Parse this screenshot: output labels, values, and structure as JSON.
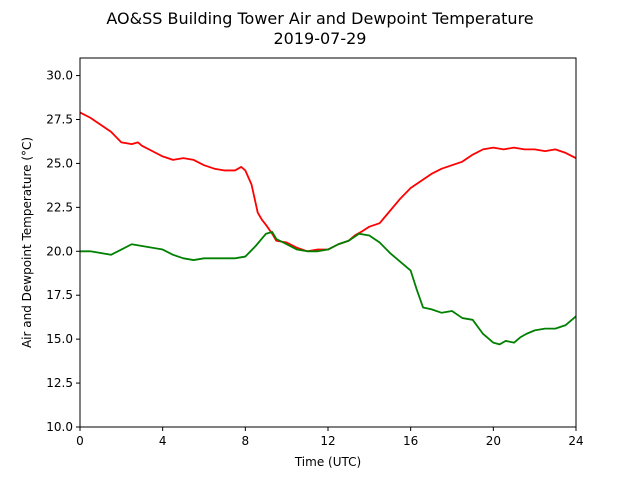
{
  "chart_data": {
    "type": "line",
    "title": "AO&SS Building Tower Air and Dewpoint Temperature",
    "subtitle": "2019-07-29",
    "xlabel": "Time (UTC)",
    "ylabel": "Air and Dewpoint Temperature (°C)",
    "xlim": [
      0,
      24
    ],
    "ylim": [
      10.0,
      31.0
    ],
    "xticks": [
      0,
      4,
      8,
      12,
      16,
      20,
      24
    ],
    "xtick_labels": [
      "0",
      "4",
      "8",
      "12",
      "16",
      "20",
      "24"
    ],
    "yticks": [
      10.0,
      12.5,
      15.0,
      17.5,
      20.0,
      22.5,
      25.0,
      27.5,
      30.0
    ],
    "ytick_labels": [
      "10.0",
      "12.5",
      "15.0",
      "17.5",
      "20.0",
      "22.5",
      "25.0",
      "27.5",
      "30.0"
    ],
    "grid": false,
    "series": [
      {
        "color": "#ff0000",
        "x": [
          0,
          0.5,
          1,
          1.5,
          2,
          2.5,
          2.8,
          3,
          3.5,
          4,
          4.5,
          5,
          5.5,
          6,
          6.5,
          7,
          7.5,
          7.8,
          8,
          8.3,
          8.6,
          8.8,
          9,
          9.3,
          9.5,
          10,
          10.5,
          11,
          11.5,
          12,
          12.5,
          13,
          13.3,
          13.6,
          14,
          14.5,
          15,
          15.5,
          16,
          16.5,
          17,
          17.5,
          18,
          18.5,
          19,
          19.5,
          20,
          20.5,
          21,
          21.5,
          22,
          22.5,
          23,
          23.5,
          24
        ],
        "values": [
          27.9,
          27.6,
          27.2,
          26.8,
          26.2,
          26.1,
          26.2,
          26.0,
          25.7,
          25.4,
          25.2,
          25.3,
          25.2,
          24.9,
          24.7,
          24.6,
          24.6,
          24.8,
          24.6,
          23.8,
          22.2,
          21.8,
          21.5,
          21.0,
          20.6,
          20.5,
          20.2,
          20.0,
          20.1,
          20.1,
          20.4,
          20.6,
          20.9,
          21.1,
          21.4,
          21.6,
          22.3,
          23.0,
          23.6,
          24.0,
          24.4,
          24.7,
          24.9,
          25.1,
          25.5,
          25.8,
          25.9,
          25.8,
          25.9,
          25.8,
          25.8,
          25.7,
          25.8,
          25.6,
          25.3
        ]
      },
      {
        "color": "#008000",
        "x": [
          0,
          0.5,
          1,
          1.5,
          2,
          2.5,
          3,
          3.5,
          4,
          4.5,
          5,
          5.5,
          6,
          6.5,
          7,
          7.5,
          8,
          8.5,
          9,
          9.3,
          9.5,
          10,
          10.5,
          11,
          11.5,
          12,
          12.5,
          13,
          13.5,
          14,
          14.5,
          15,
          15.5,
          16,
          16.3,
          16.6,
          17,
          17.5,
          18,
          18.5,
          19,
          19.5,
          20,
          20.3,
          20.6,
          21,
          21.3,
          21.6,
          22,
          22.5,
          23,
          23.5,
          24
        ],
        "values": [
          20.0,
          20.0,
          19.9,
          19.8,
          20.1,
          20.4,
          20.3,
          20.2,
          20.1,
          19.8,
          19.6,
          19.5,
          19.6,
          19.6,
          19.6,
          19.6,
          19.7,
          20.3,
          21.0,
          21.1,
          20.7,
          20.4,
          20.1,
          20.0,
          20.0,
          20.1,
          20.4,
          20.6,
          21.0,
          20.9,
          20.5,
          19.9,
          19.4,
          18.9,
          17.8,
          16.8,
          16.7,
          16.5,
          16.6,
          16.2,
          16.1,
          15.3,
          14.8,
          14.7,
          14.9,
          14.8,
          15.1,
          15.3,
          15.5,
          15.6,
          15.6,
          15.8,
          16.3
        ]
      }
    ]
  }
}
